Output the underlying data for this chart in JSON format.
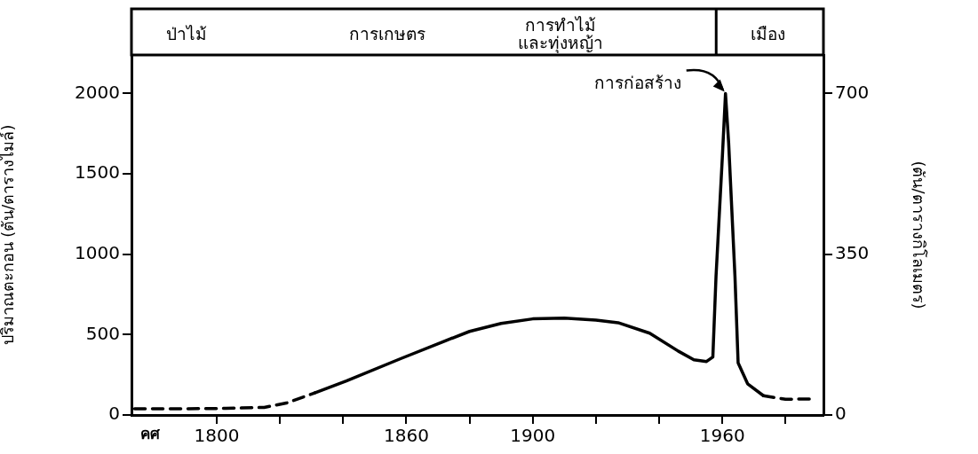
{
  "chart_data": {
    "type": "line",
    "ylabel": "ปริมาณตะกอน (ตัน/ตารางไมล์)",
    "y2label": "(ตัน/ตารางกิโลเมตร)",
    "xlabel": "คศ",
    "xlim": [
      1773,
      1992
    ],
    "xticks": [
      1800,
      {
        "value": 1820,
        "label": null
      },
      {
        "value": 1840,
        "label": null
      },
      1860,
      {
        "value": 1880,
        "label": null
      },
      1900,
      {
        "value": 1920,
        "label": null
      },
      {
        "value": 1940,
        "label": null
      },
      1960,
      {
        "value": 1980,
        "label": null
      }
    ],
    "ylim": [
      0,
      2240
    ],
    "yticks": [
      0,
      500,
      1000,
      1500,
      2000
    ],
    "y2lim": [
      0,
      784
    ],
    "y2ticks": [
      0,
      350,
      700
    ],
    "grid": false,
    "legend": false,
    "marker": "none",
    "series": [
      {
        "color": "#000000",
        "line_style": "dashed",
        "x": [
          1774,
          1800,
          1815,
          1822,
          1831
        ],
        "values": [
          38,
          40,
          47,
          74,
          137
        ]
      },
      {
        "color": "#000000",
        "line_style": "solid",
        "x": [
          1831,
          1841,
          1858,
          1872,
          1880,
          1890,
          1900,
          1910,
          1920,
          1927,
          1937,
          1946,
          1951,
          1955,
          1957,
          1958,
          1960,
          1961,
          1962,
          1964,
          1965,
          1968,
          1973
        ],
        "values": [
          137,
          212,
          349,
          459,
          520,
          570,
          598,
          603,
          590,
          574,
          509,
          398,
          343,
          333,
          361,
          861,
          1602,
          2000,
          1694,
          861,
          324,
          194,
          120
        ]
      },
      {
        "color": "#000000",
        "line_style": "dashed",
        "x": [
          1973,
          1980,
          1989
        ],
        "values": [
          120,
          98,
          100
        ]
      }
    ],
    "annotations": [
      "ป่าไม้",
      "การเกษตร",
      "การทำไม้\nและทุ่งหญ้า",
      "เมือง",
      {
        "text": "การก่อสร้าง",
        "x": 1961,
        "y": 2000
      }
    ]
  }
}
